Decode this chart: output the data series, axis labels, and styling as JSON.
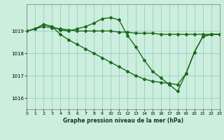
{
  "title": "Graphe pression niveau de la mer (hPa)",
  "background_color": "#cceedd",
  "grid_color": "#99cccc",
  "line_color": "#1a6b1a",
  "marker": "D",
  "marker_size": 2.0,
  "line_width": 1.0,
  "xlim": [
    0,
    23
  ],
  "ylim": [
    1015.5,
    1020.2
  ],
  "yticks": [
    1016,
    1017,
    1018,
    1019
  ],
  "xticks": [
    0,
    1,
    2,
    3,
    4,
    5,
    6,
    7,
    8,
    9,
    10,
    11,
    12,
    13,
    14,
    15,
    16,
    17,
    18,
    19,
    20,
    21,
    22,
    23
  ],
  "series": [
    {
      "x": [
        0,
        1,
        2,
        3,
        4,
        5,
        6,
        7,
        8,
        9,
        10,
        11,
        12,
        13,
        14,
        15,
        16,
        17,
        18,
        19,
        20,
        21,
        22,
        23
      ],
      "y": [
        1019.0,
        1019.1,
        1019.2,
        1019.15,
        1019.1,
        1019.05,
        1019.0,
        1019.0,
        1019.0,
        1019.0,
        1019.0,
        1018.95,
        1018.95,
        1018.9,
        1018.9,
        1018.9,
        1018.85,
        1018.85,
        1018.85,
        1018.85,
        1018.85,
        1018.85,
        1018.85,
        1018.85
      ]
    },
    {
      "x": [
        0,
        1,
        2,
        3,
        4,
        5,
        6,
        7,
        8,
        9,
        10,
        11,
        12,
        13,
        14,
        15,
        16,
        17,
        18,
        19,
        20,
        21,
        22,
        23
      ],
      "y": [
        1019.0,
        1019.1,
        1019.3,
        1019.2,
        1019.05,
        1019.0,
        1019.1,
        1019.2,
        1019.35,
        1019.55,
        1019.6,
        1019.5,
        1018.8,
        1018.3,
        1017.7,
        1017.2,
        1016.9,
        1016.6,
        1016.3,
        1017.1,
        1018.05,
        1018.75,
        1018.85,
        1018.85
      ]
    },
    {
      "x": [
        0,
        1,
        2,
        3,
        4,
        5,
        6,
        7,
        8,
        9,
        10,
        11,
        12,
        13,
        14,
        15,
        16,
        17,
        18,
        19,
        20,
        21,
        22,
        23
      ],
      "y": [
        1019.0,
        1019.1,
        1019.3,
        1019.2,
        1018.85,
        1018.6,
        1018.4,
        1018.2,
        1018.0,
        1017.8,
        1017.6,
        1017.4,
        1017.2,
        1017.0,
        1016.85,
        1016.75,
        1016.7,
        1016.65,
        1016.6,
        1017.1,
        1018.05,
        1018.75,
        1018.85,
        1018.85
      ]
    }
  ]
}
